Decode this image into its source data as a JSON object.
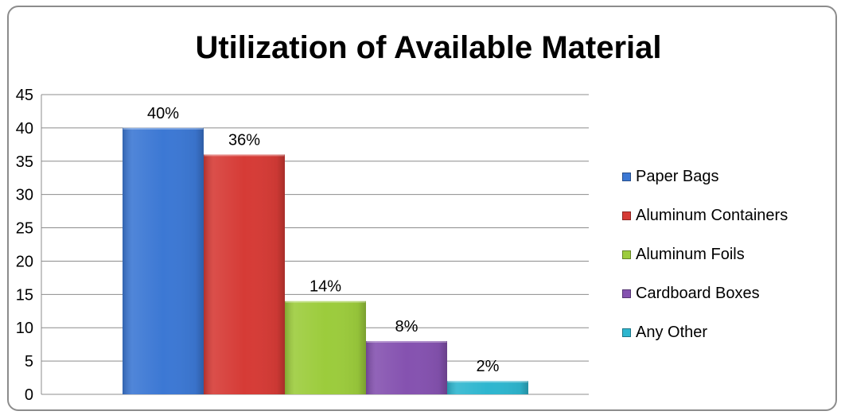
{
  "chart_data": {
    "type": "bar",
    "title": "Utilization of Available Material",
    "categories": [
      "Paper Bags",
      "Aluminum Containers",
      "Aluminum Foils",
      "Cardboard Boxes",
      "Any Other"
    ],
    "values": [
      40,
      36,
      14,
      8,
      2
    ],
    "data_labels": [
      "40%",
      "36%",
      "14%",
      "8%",
      "2%"
    ],
    "colors": [
      "#3c78d4",
      "#d63b36",
      "#9ccc3c",
      "#8552b0",
      "#2eb6cf"
    ],
    "ylim": [
      0,
      45
    ],
    "yticks": [
      "0",
      "5",
      "10",
      "15",
      "20",
      "25",
      "30",
      "35",
      "40",
      "45"
    ],
    "grid": true,
    "legend_position": "right"
  }
}
